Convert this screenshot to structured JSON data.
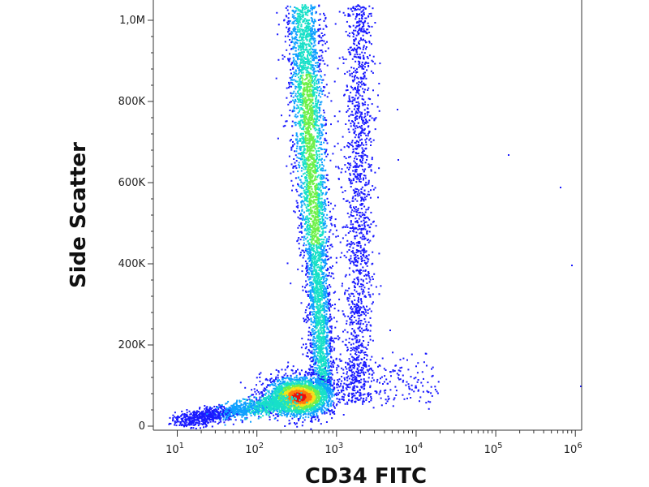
{
  "chart_data": {
    "type": "scatter",
    "xlabel": "CD34 FITC",
    "ylabel": "Side Scatter",
    "x_scale": "log",
    "xlim": [
      5,
      1200000
    ],
    "ylim": [
      -10000,
      1050000
    ],
    "x_ticks": [
      {
        "value": 10,
        "base": "10",
        "exp": "1"
      },
      {
        "value": 100,
        "base": "10",
        "exp": "2"
      },
      {
        "value": 1000,
        "base": "10",
        "exp": "3"
      },
      {
        "value": 10000,
        "base": "10",
        "exp": "4"
      },
      {
        "value": 100000,
        "base": "10",
        "exp": "5"
      },
      {
        "value": 1000000,
        "base": "10",
        "exp": "6"
      }
    ],
    "y_ticks": [
      {
        "value": 0,
        "label": "0"
      },
      {
        "value": 200000,
        "label": "200K"
      },
      {
        "value": 400000,
        "label": "400K"
      },
      {
        "value": 600000,
        "label": "600K"
      },
      {
        "value": 800000,
        "label": "800K"
      },
      {
        "value": 1000000,
        "label": "1,0M"
      }
    ],
    "density_colors": [
      "#1a1aff",
      "#0fa0ff",
      "#18e0c8",
      "#6ef04a",
      "#f5e21a",
      "#ff7a10",
      "#e80f0f"
    ],
    "populations": [
      {
        "x_center": 800,
        "y_range": [
          100000,
          1050000
        ],
        "density": "high"
      },
      {
        "x_center": 500,
        "y_center": 70000,
        "density": "peak"
      },
      {
        "x_range": [
          20,
          300
        ],
        "y_range": [
          0,
          60000
        ],
        "density": "low"
      },
      {
        "x_center": 3000,
        "y_range": [
          20000,
          1050000
        ],
        "density": "low"
      }
    ],
    "grid": false,
    "legend": "none"
  }
}
